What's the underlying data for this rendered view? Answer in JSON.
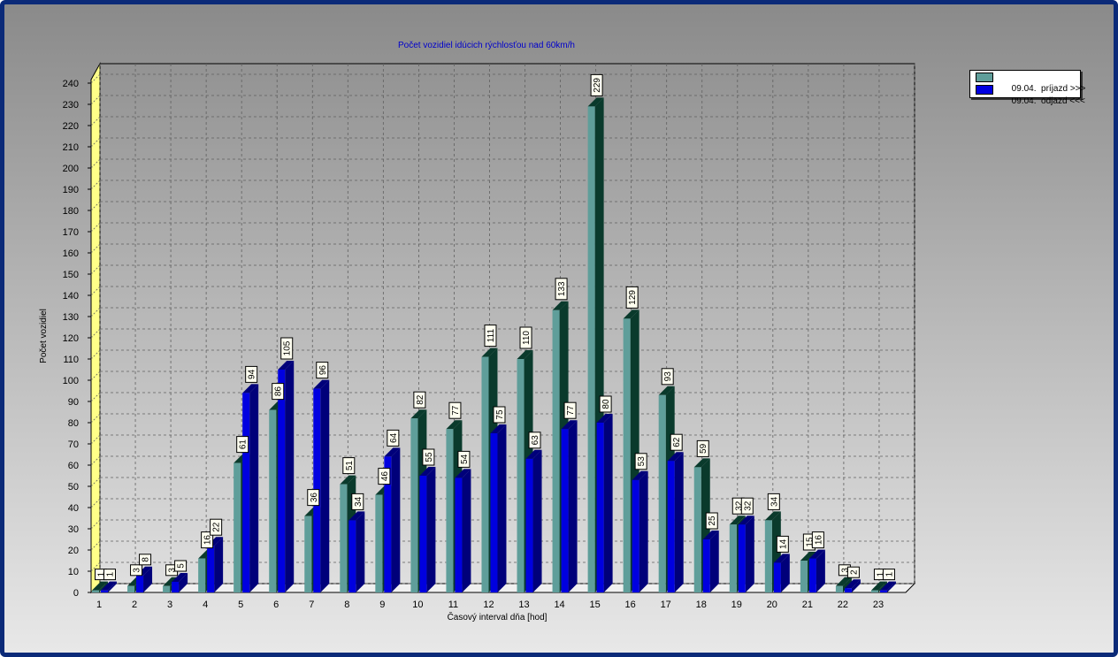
{
  "chart_data": {
    "type": "bar",
    "title": "Počet vozidiel idúcich rýchlosťou nad 60km/h",
    "xlabel": "Časový interval dňa [hod]",
    "ylabel": "Počet vozidiel",
    "ylim": [
      0,
      240
    ],
    "ytick_step": 10,
    "grid": true,
    "three_d": true,
    "legend_position": "top-right",
    "categories": [
      "1",
      "2",
      "3",
      "4",
      "5",
      "6",
      "7",
      "8",
      "9",
      "10",
      "11",
      "12",
      "13",
      "14",
      "15",
      "16",
      "17",
      "18",
      "19",
      "20",
      "21",
      "22",
      "23"
    ],
    "series": [
      {
        "name": "09.04.  príjazd >>>",
        "color": "#5f9e9a",
        "side_color": "#0a3a2c",
        "values": [
          1,
          3,
          3,
          16,
          61,
          86,
          36,
          51,
          46,
          82,
          77,
          111,
          110,
          133,
          229,
          129,
          93,
          59,
          32,
          34,
          15,
          3,
          1
        ]
      },
      {
        "name": "09.04.  odjazd <<<",
        "color": "#0000e0",
        "side_color": "#00007a",
        "values": [
          1,
          8,
          5,
          22,
          94,
          105,
          96,
          34,
          64,
          55,
          54,
          75,
          63,
          77,
          80,
          53,
          62,
          25,
          32,
          14,
          16,
          2,
          1
        ]
      }
    ]
  }
}
